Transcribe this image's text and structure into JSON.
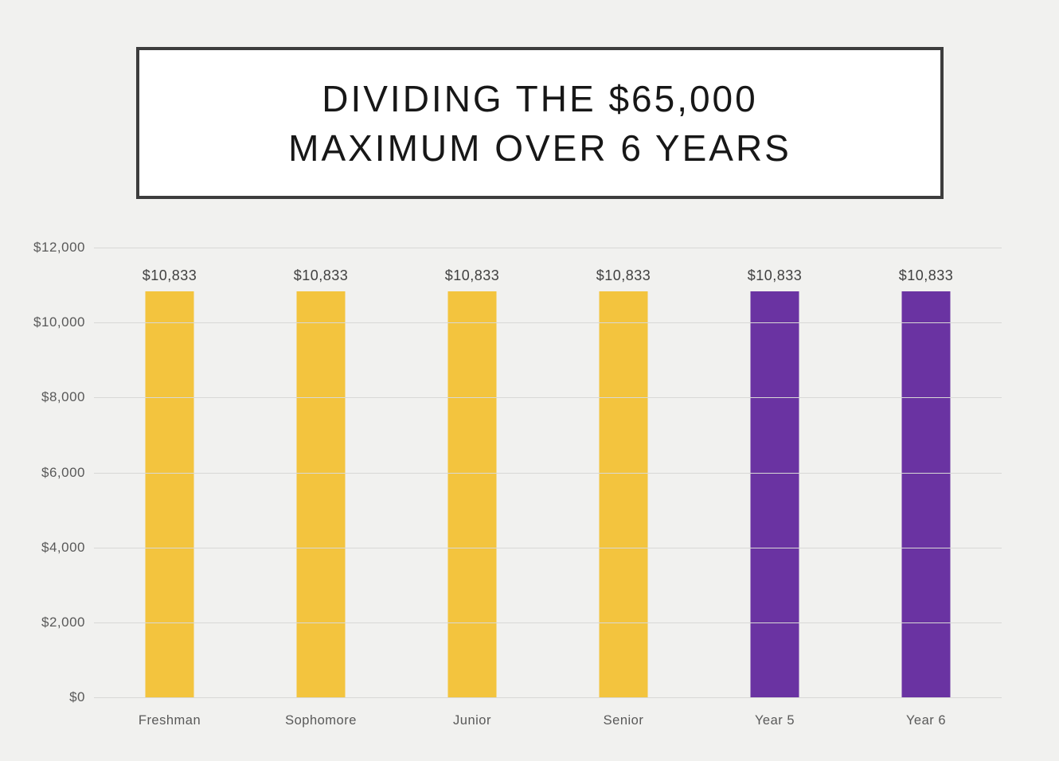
{
  "title": {
    "text": "DIVIDING THE $65,000\nMAXIMUM OVER 6 YEARS"
  },
  "colors": {
    "background": "#f1f1ef",
    "title_border": "#3d3d3d",
    "title_text": "#171717",
    "gridline": "#d8d8d6",
    "axis_label": "#595959",
    "value_label": "#404040",
    "bar_gold": "#f3c43e",
    "bar_purple": "#6a33a2"
  },
  "chart_data": {
    "type": "bar",
    "title": "DIVIDING THE $65,000 MAXIMUM OVER 6 YEARS",
    "categories": [
      "Freshman",
      "Sophomore",
      "Junior",
      "Senior",
      "Year 5",
      "Year 6"
    ],
    "values": [
      10833,
      10833,
      10833,
      10833,
      10833,
      10833
    ],
    "value_labels": [
      "$10,833",
      "$10,833",
      "$10,833",
      "$10,833",
      "$10,833",
      "$10,833"
    ],
    "bar_colors": [
      "#f3c43e",
      "#f3c43e",
      "#f3c43e",
      "#f3c43e",
      "#6a33a2",
      "#6a33a2"
    ],
    "xlabel": "",
    "ylabel": "",
    "ylim": [
      0,
      12000
    ],
    "ytick_step": 2000,
    "ytick_labels": [
      "$0",
      "$2,000",
      "$4,000",
      "$6,000",
      "$8,000",
      "$10,000",
      "$12,000"
    ],
    "grid": true,
    "legend": false
  }
}
